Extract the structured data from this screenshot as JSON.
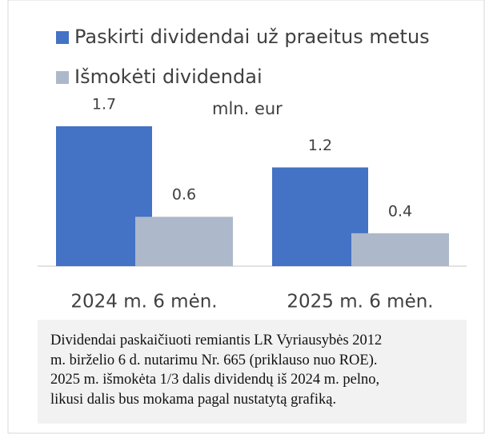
{
  "chart_data": {
    "type": "bar",
    "unit_label": "mln. eur",
    "categories": [
      "2024 m. 6 mėn.",
      "2025 m. 6 mėn."
    ],
    "series": [
      {
        "name": "Paskirti dividendai už praeitus metus",
        "color": "#4472c4",
        "values": [
          1.7,
          1.2
        ]
      },
      {
        "name": "Išmokėti dividendai",
        "color": "#adb9ca",
        "values": [
          0.6,
          0.4
        ]
      }
    ]
  },
  "note": {
    "lines": [
      "Dividendai paskaičiuoti remiantis LR Vyriausybės 2012",
      "m. birželio 6 d. nutarimu Nr. 665 (priklauso nuo ROE).",
      "2025 m. išmokėta 1/3 dalis dividendų iš 2024 m. pelno,",
      "likusi dalis bus mokama pagal nustatytą grafiką."
    ]
  }
}
